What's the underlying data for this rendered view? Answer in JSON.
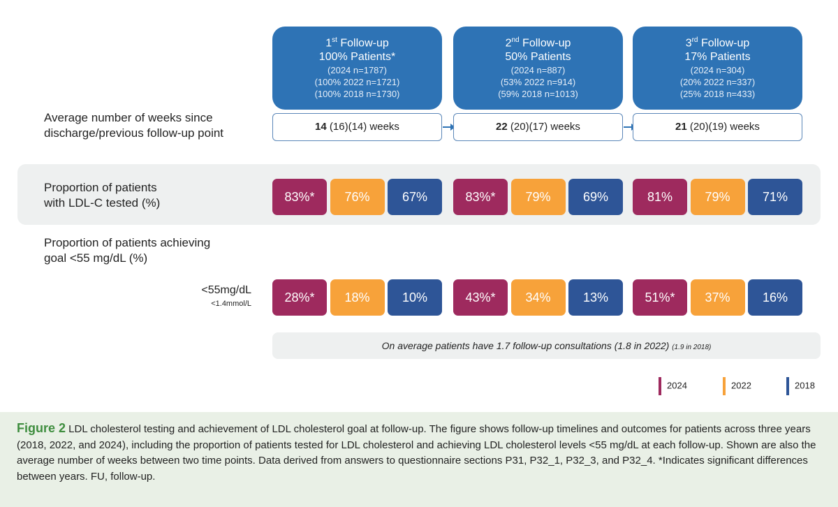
{
  "followups": [
    {
      "ord": "1",
      "sup": "st",
      "title": " Follow-up",
      "patients": "100% Patients*",
      "n2024": "(2024 n=1787)",
      "n2022": "(100% 2022 n=1721)",
      "n2018": "(100% 2018 n=1730)",
      "weeks_bold": "14",
      "weeks_rest": " (16)(14) weeks"
    },
    {
      "ord": "2",
      "sup": "nd",
      "title": " Follow-up",
      "patients": "50% Patients",
      "n2024": "(2024 n=887)",
      "n2022": "(53% 2022 n=914)",
      "n2018": "(59% 2018 n=1013)",
      "weeks_bold": "22",
      "weeks_rest": " (20)(17) weeks"
    },
    {
      "ord": "3",
      "sup": "rd",
      "title": " Follow-up",
      "patients": "17% Patients",
      "n2024": "(2024 n=304)",
      "n2022": "(20% 2022 n=337)",
      "n2018": "(25% 2018 n=433)",
      "weeks_bold": "21",
      "weeks_rest": " (20)(19) weeks"
    }
  ],
  "labels": {
    "weeks": "Average number of weeks since",
    "weeks2": "discharge/previous follow-up point",
    "tested": "Proportion of patients",
    "tested2": "with LDL-C tested (%)",
    "goal": "Proportion of patients achieving",
    "goal2": "goal <55 mg/dL (%)",
    "goal_mg": "<55mg/dL",
    "goal_mmol": "<1.4mmol/L"
  },
  "tested": [
    [
      "83%*",
      "76%",
      "67%"
    ],
    [
      "83%*",
      "79%",
      "69%"
    ],
    [
      "81%",
      "79%",
      "71%"
    ]
  ],
  "goal": [
    [
      "28%*",
      "18%",
      "10%"
    ],
    [
      "43%*",
      "34%",
      "13%"
    ],
    [
      "51%*",
      "37%",
      "16%"
    ]
  ],
  "note": "On average patients have 1.7 follow-up consultations (1.8 in 2022)",
  "note_small": "(1.9 in 2018)",
  "legend": [
    {
      "label": "2024",
      "color": "#9e2a5e"
    },
    {
      "label": "2022",
      "color": "#f7a23a"
    },
    {
      "label": "2018",
      "color": "#2e5597"
    }
  ],
  "caption": {
    "fig": "Figure 2",
    "text": " LDL cholesterol testing and achievement of LDL cholesterol goal at follow-up. The figure shows follow-up timelines and outcomes for patients across three years (2018, 2022, and 2024), including the proportion of patients tested for LDL cholesterol and achieving LDL cholesterol levels <55 mg/dL at each follow-up. Shown are also the average number of weeks between two time points. Data derived from answers to questionnaire sections P31, P32_1, P32_3, and P32_4. *Indicates significant differences between years. FU, follow-up."
  }
}
